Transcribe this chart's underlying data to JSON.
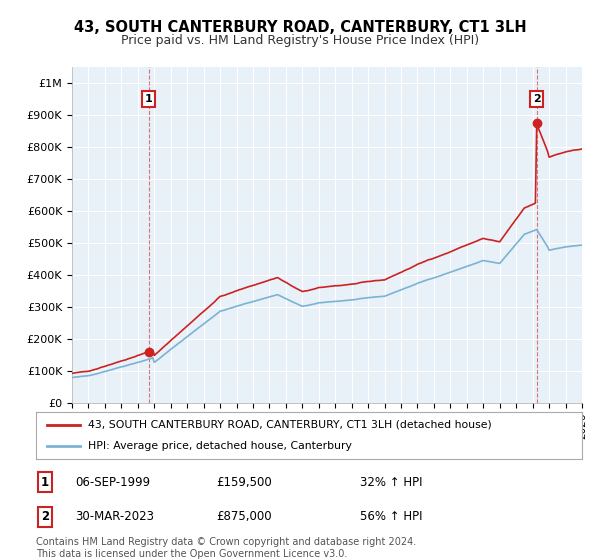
{
  "title": "43, SOUTH CANTERBURY ROAD, CANTERBURY, CT1 3LH",
  "subtitle": "Price paid vs. HM Land Registry's House Price Index (HPI)",
  "ylim": [
    0,
    1050000
  ],
  "yticks": [
    0,
    100000,
    200000,
    300000,
    400000,
    500000,
    600000,
    700000,
    800000,
    900000,
    1000000
  ],
  "ytick_labels": [
    "£0",
    "£100K",
    "£200K",
    "£300K",
    "£400K",
    "£500K",
    "£600K",
    "£700K",
    "£800K",
    "£900K",
    "£1M"
  ],
  "hpi_color": "#7ab3d4",
  "price_color": "#cc2222",
  "background_color": "#ffffff",
  "plot_bg_color": "#e8f0f8",
  "grid_color": "#ffffff",
  "legend_label_price": "43, SOUTH CANTERBURY ROAD, CANTERBURY, CT1 3LH (detached house)",
  "legend_label_hpi": "HPI: Average price, detached house, Canterbury",
  "transaction1_date": "06-SEP-1999",
  "transaction1_price": "£159,500",
  "transaction1_hpi": "32% ↑ HPI",
  "transaction1_year": 1999.67,
  "transaction1_value": 159500,
  "transaction2_date": "30-MAR-2023",
  "transaction2_price": "£875,000",
  "transaction2_hpi": "56% ↑ HPI",
  "transaction2_year": 2023.25,
  "transaction2_value": 875000,
  "footnote": "Contains HM Land Registry data © Crown copyright and database right 2024.\nThis data is licensed under the Open Government Licence v3.0.",
  "xmin": 1995,
  "xmax": 2026
}
